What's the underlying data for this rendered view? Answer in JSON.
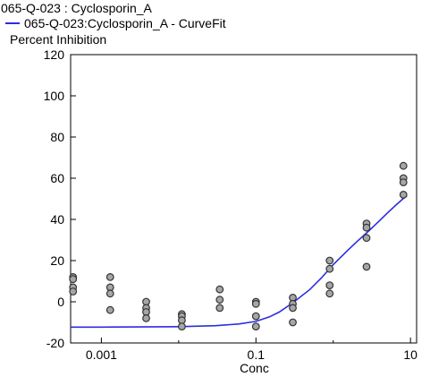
{
  "chart_data": {
    "type": "scatter",
    "legend": {
      "points_label": "065-Q-023  : Cyclosporin_A",
      "curve_label": "065-Q-023:Cyclosporin_A - CurveFit"
    },
    "ylabel": "Percent Inhibition",
    "xlabel": "Conc",
    "x_scale": "log",
    "xlim": [
      0.0004,
      12
    ],
    "ylim": [
      -20,
      120
    ],
    "yticks": [
      -20,
      0,
      20,
      40,
      60,
      80,
      100,
      120
    ],
    "xticks": [
      0.001,
      0.1,
      10
    ],
    "xtick_labels": [
      "0.001",
      "0.1",
      "10"
    ],
    "grid": false,
    "colors": {
      "curve": "#2d2de0",
      "marker_fill": "#a6a6a6",
      "marker_edge": "#333333"
    },
    "series": [
      {
        "name": "065-Q-023  : Cyclosporin_A",
        "kind": "points",
        "points": [
          {
            "x": 0.00043,
            "y": 12
          },
          {
            "x": 0.00043,
            "y": 11
          },
          {
            "x": 0.00043,
            "y": 7
          },
          {
            "x": 0.00043,
            "y": 5
          },
          {
            "x": 0.0013,
            "y": 12
          },
          {
            "x": 0.0013,
            "y": 7
          },
          {
            "x": 0.0013,
            "y": 4
          },
          {
            "x": 0.0013,
            "y": -4
          },
          {
            "x": 0.0038,
            "y": 0
          },
          {
            "x": 0.0038,
            "y": -3
          },
          {
            "x": 0.0038,
            "y": -5
          },
          {
            "x": 0.0038,
            "y": -8
          },
          {
            "x": 0.011,
            "y": -6
          },
          {
            "x": 0.011,
            "y": -7
          },
          {
            "x": 0.011,
            "y": -9
          },
          {
            "x": 0.011,
            "y": -12
          },
          {
            "x": 0.034,
            "y": 6
          },
          {
            "x": 0.034,
            "y": 1
          },
          {
            "x": 0.034,
            "y": -3
          },
          {
            "x": 0.1,
            "y": 0
          },
          {
            "x": 0.1,
            "y": -1
          },
          {
            "x": 0.1,
            "y": -7
          },
          {
            "x": 0.1,
            "y": -12
          },
          {
            "x": 0.3,
            "y": 2
          },
          {
            "x": 0.3,
            "y": -1
          },
          {
            "x": 0.3,
            "y": -3
          },
          {
            "x": 0.3,
            "y": -10
          },
          {
            "x": 0.9,
            "y": 20
          },
          {
            "x": 0.9,
            "y": 16
          },
          {
            "x": 0.9,
            "y": 8
          },
          {
            "x": 0.9,
            "y": 4
          },
          {
            "x": 2.7,
            "y": 38
          },
          {
            "x": 2.7,
            "y": 36
          },
          {
            "x": 2.7,
            "y": 31
          },
          {
            "x": 2.7,
            "y": 17
          },
          {
            "x": 8.1,
            "y": 66
          },
          {
            "x": 8.1,
            "y": 60
          },
          {
            "x": 8.1,
            "y": 58
          },
          {
            "x": 8.1,
            "y": 52
          }
        ]
      },
      {
        "name": "065-Q-023:Cyclosporin_A - CurveFit",
        "kind": "curve",
        "points": [
          {
            "x": 0.0004,
            "y": -12.3
          },
          {
            "x": 0.001,
            "y": -12.3
          },
          {
            "x": 0.003,
            "y": -12.2
          },
          {
            "x": 0.01,
            "y": -12.1
          },
          {
            "x": 0.03,
            "y": -11.6
          },
          {
            "x": 0.06,
            "y": -10.8
          },
          {
            "x": 0.1,
            "y": -9.5
          },
          {
            "x": 0.15,
            "y": -7.3
          },
          {
            "x": 0.2,
            "y": -5
          },
          {
            "x": 0.3,
            "y": -0.5
          },
          {
            "x": 0.5,
            "y": 6
          },
          {
            "x": 0.7,
            "y": 11.5
          },
          {
            "x": 1,
            "y": 18
          },
          {
            "x": 1.5,
            "y": 24.5
          },
          {
            "x": 2,
            "y": 29
          },
          {
            "x": 3,
            "y": 35
          },
          {
            "x": 4,
            "y": 39.5
          },
          {
            "x": 5,
            "y": 43
          },
          {
            "x": 6.5,
            "y": 47
          },
          {
            "x": 8,
            "y": 50
          },
          {
            "x": 9,
            "y": 51.5
          }
        ]
      }
    ]
  }
}
